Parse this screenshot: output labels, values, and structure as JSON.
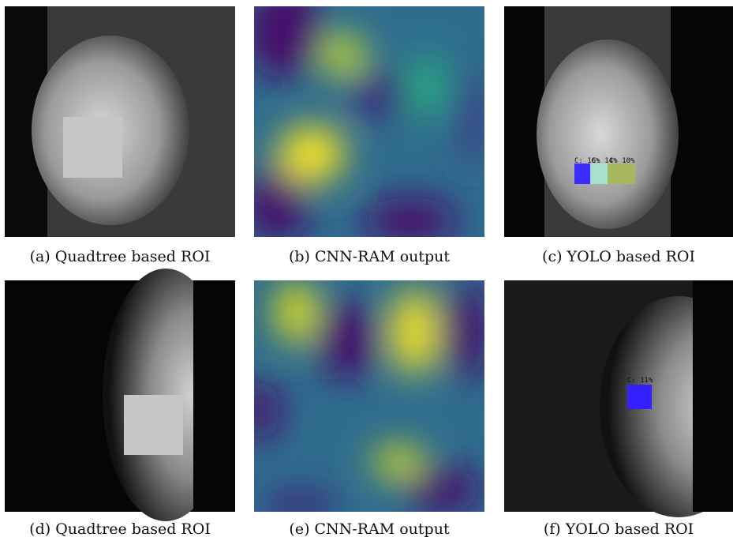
{
  "panels": [
    {
      "caption": "(a) Quadtree based ROI"
    },
    {
      "caption": "(b) CNN-RAM output"
    },
    {
      "caption": "(c) YOLO based ROI",
      "labels": [
        "C: 16%",
        "C: 14%",
        "C: 10%"
      ]
    },
    {
      "caption": "(d) Quadtree based ROI"
    },
    {
      "caption": "(e) CNN-RAM output"
    },
    {
      "caption": "(f) YOLO based ROI",
      "labels": [
        "C: 11%"
      ]
    }
  ]
}
